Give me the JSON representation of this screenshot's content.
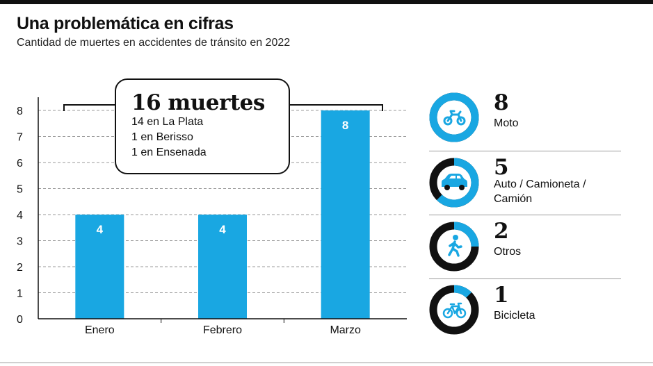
{
  "header": {
    "title": "Una problemática en cifras",
    "subtitle": "Cantidad de muertes en accidentes de tránsito en 2022"
  },
  "chart_data": {
    "type": "bar",
    "categories": [
      "Enero",
      "Febrero",
      "Marzo"
    ],
    "values": [
      4,
      4,
      8
    ],
    "value_labels": [
      "4",
      "4",
      "8"
    ],
    "yticks": [
      "0",
      "1",
      "2",
      "3",
      "4",
      "5",
      "6",
      "7",
      "8"
    ],
    "ylim": [
      0,
      8
    ],
    "grid": true,
    "colors": {
      "bar": "#19a7e2",
      "bar_label": "#ffffff",
      "axis": "#111111",
      "grid": "#9a9a9a"
    }
  },
  "callout": {
    "total": "16 muertes",
    "lines": [
      "14 en La Plata",
      "1 en Berisso",
      "1 en Ensenada"
    ]
  },
  "breakdown": {
    "max": 8,
    "colors": {
      "ring": "#111111",
      "fill": "#19a7e2"
    },
    "items": [
      {
        "value": 8,
        "number": "8",
        "label_lines": [
          "Moto"
        ],
        "icon": "motorcycle-icon"
      },
      {
        "value": 5,
        "number": "5",
        "label_lines": [
          "Auto / Camioneta /",
          "Camión"
        ],
        "icon": "car-icon"
      },
      {
        "value": 2,
        "number": "2",
        "label_lines": [
          "Otros"
        ],
        "icon": "pedestrian-icon"
      },
      {
        "value": 1,
        "number": "1",
        "label_lines": [
          "Bicicleta"
        ],
        "icon": "bicycle-icon"
      }
    ]
  }
}
